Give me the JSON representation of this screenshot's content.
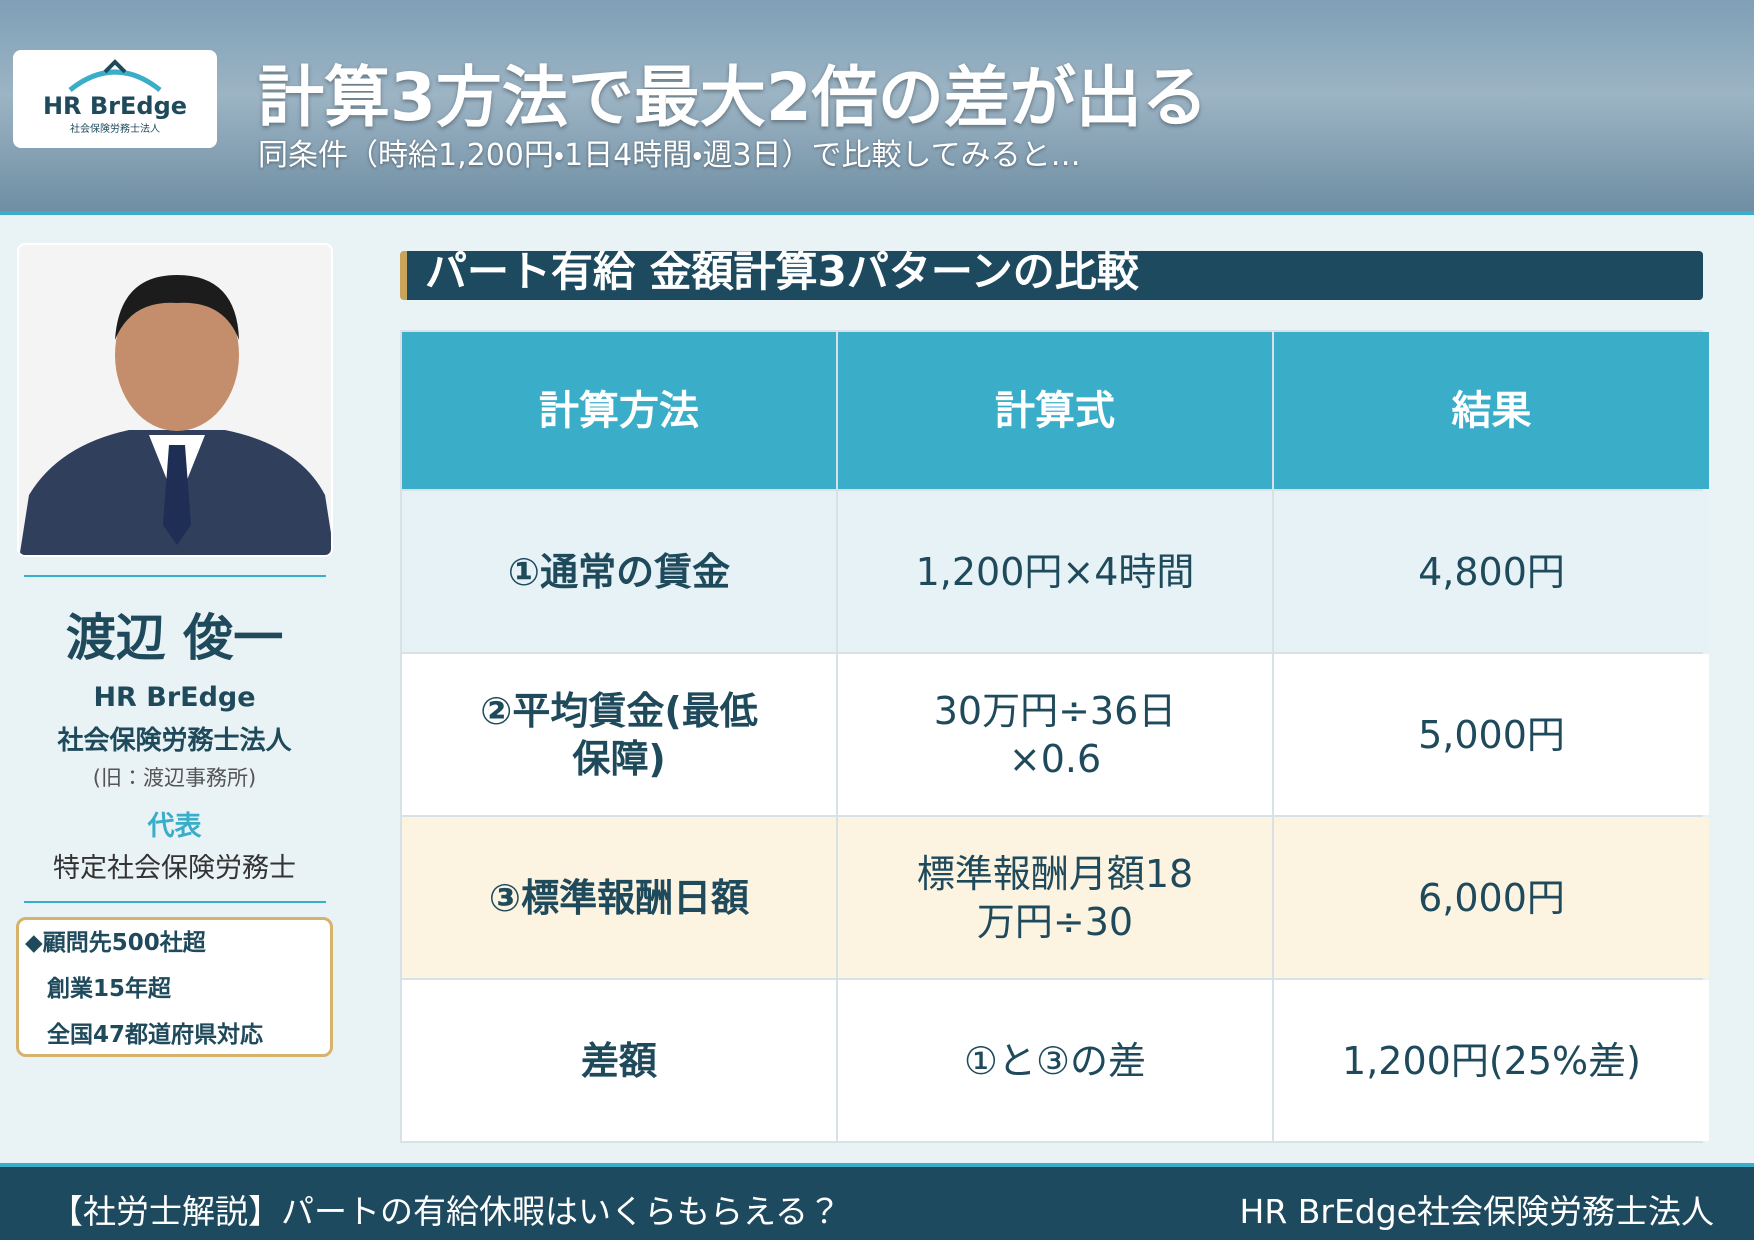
{
  "header": {
    "logo": "HR BrEdge",
    "logo_sub": "社会保険労務士法人",
    "title": "計算3方法で最大2倍の差が出る",
    "subtitle": "同条件（時給1,200円・1日4時間・週3日）で比較してみると…"
  },
  "profile": {
    "name": "渡辺 俊一",
    "company": "HR BrEdge",
    "company_type": "社会保険労務士法人",
    "former": "(旧：渡辺事務所)",
    "role": "代表",
    "qualification": "特定社会保険労務士",
    "highlights": [
      "◆顧問先500社超",
      "創業15年超",
      "全国47都道府県対応"
    ]
  },
  "section_title": "パート有給 金額計算3パターンの比較",
  "table": {
    "headers": [
      "計算方法",
      "計算式",
      "結果"
    ],
    "rows": [
      [
        "①通常の賃金",
        "1,200円×4時間",
        "4,800円"
      ],
      [
        "②平均賃金(最低保障)",
        "30万円÷36日×0.6",
        "5,000円"
      ],
      [
        "③標準報酬日額",
        "標準報酬月額18万円÷30",
        "6,000円"
      ],
      [
        "差額",
        "①と③の差",
        "1,200円(25%差)"
      ]
    ]
  },
  "footer": {
    "left": "【社労士解説】パートの有給休暇はいくらもらえる？",
    "right": "HR BrEdge社会保険労務士法人"
  }
}
